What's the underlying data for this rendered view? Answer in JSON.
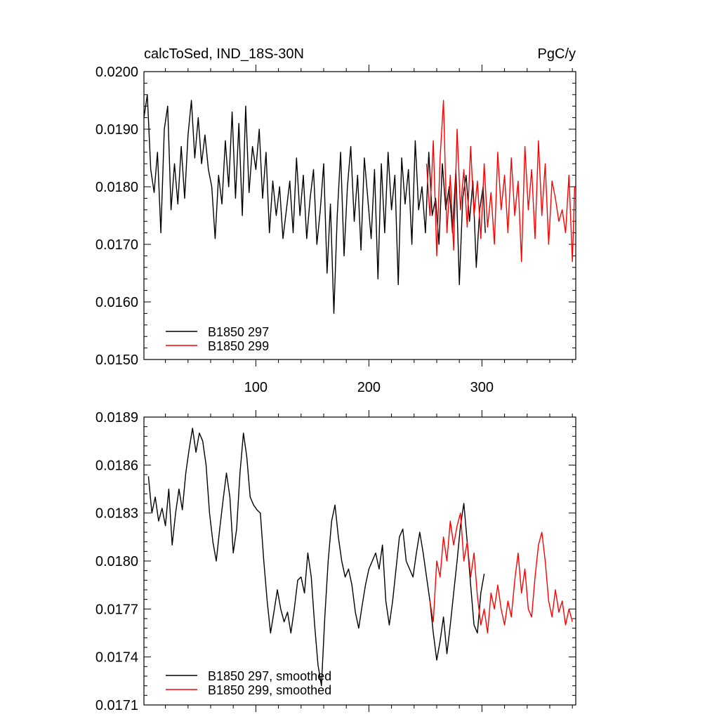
{
  "colors": {
    "black": "#000000",
    "red": "#ff0000"
  },
  "chart_data": [
    {
      "type": "line",
      "title": "calcToSed, IND_18S-30N",
      "units": "PgC/y",
      "xlabel": "",
      "ylabel": "",
      "xlim": [
        1,
        383
      ],
      "ylim": [
        0.015,
        0.02
      ],
      "x_ticks": [
        100,
        200,
        300
      ],
      "x_tick_labels": [
        "100",
        "200",
        "300"
      ],
      "y_ticks": [
        0.015,
        0.016,
        0.017,
        0.018,
        0.019,
        0.02
      ],
      "y_tick_labels": [
        "0.0150",
        "0.0160",
        "0.0170",
        "0.0180",
        "0.0190",
        "0.0200"
      ],
      "grid": false,
      "legend_position": "bottom-left",
      "series": [
        {
          "name": "B1850 297",
          "color": "#000000",
          "x": [
            1,
            4,
            7,
            10,
            13,
            16,
            19,
            22,
            25,
            28,
            31,
            34,
            37,
            40,
            43,
            46,
            49,
            52,
            55,
            58,
            61,
            64,
            67,
            70,
            73,
            76,
            79,
            82,
            85,
            88,
            91,
            94,
            97,
            100,
            103,
            106,
            109,
            112,
            115,
            118,
            121,
            124,
            127,
            130,
            133,
            136,
            139,
            142,
            145,
            148,
            151,
            154,
            157,
            160,
            163,
            166,
            169,
            172,
            175,
            178,
            181,
            184,
            187,
            190,
            193,
            196,
            199,
            202,
            205,
            208,
            211,
            214,
            217,
            220,
            223,
            226,
            229,
            232,
            235,
            238,
            241,
            244,
            247,
            250,
            253,
            256,
            259,
            262,
            265,
            268,
            271,
            274,
            277,
            280,
            283,
            286,
            289,
            292,
            295,
            298,
            301,
            303
          ],
          "values": [
            0.0192,
            0.0196,
            0.0183,
            0.0179,
            0.0186,
            0.0172,
            0.019,
            0.0194,
            0.0176,
            0.0184,
            0.0177,
            0.0187,
            0.0178,
            0.0189,
            0.0195,
            0.0185,
            0.0192,
            0.0184,
            0.0189,
            0.0183,
            0.018,
            0.0171,
            0.0182,
            0.0177,
            0.0188,
            0.018,
            0.0193,
            0.0178,
            0.0191,
            0.0175,
            0.0194,
            0.0179,
            0.0187,
            0.0183,
            0.019,
            0.0178,
            0.0186,
            0.0172,
            0.0181,
            0.0175,
            0.018,
            0.0171,
            0.0176,
            0.0181,
            0.0172,
            0.0185,
            0.0175,
            0.0182,
            0.0171,
            0.0178,
            0.0183,
            0.017,
            0.0176,
            0.0184,
            0.0165,
            0.0177,
            0.0158,
            0.0175,
            0.0186,
            0.0168,
            0.018,
            0.0187,
            0.0174,
            0.0182,
            0.0169,
            0.0185,
            0.0178,
            0.0171,
            0.0183,
            0.0164,
            0.0184,
            0.0172,
            0.0186,
            0.0176,
            0.0182,
            0.0163,
            0.0185,
            0.0177,
            0.0183,
            0.017,
            0.0188,
            0.0176,
            0.018,
            0.0172,
            0.0186,
            0.0175,
            0.0178,
            0.017,
            0.0184,
            0.0176,
            0.018,
            0.0172,
            0.0183,
            0.0163,
            0.0178,
            0.0182,
            0.0174,
            0.0181,
            0.0166,
            0.0176,
            0.018,
            0.0172
          ]
        },
        {
          "name": "B1850 299",
          "color": "#ff0000",
          "x": [
            251,
            254,
            257,
            260,
            263,
            266,
            269,
            272,
            275,
            278,
            281,
            284,
            287,
            290,
            293,
            296,
            299,
            302,
            305,
            308,
            311,
            314,
            317,
            320,
            323,
            326,
            329,
            332,
            335,
            338,
            341,
            344,
            347,
            350,
            353,
            356,
            359,
            362,
            365,
            368,
            371,
            374,
            377,
            380,
            382
          ],
          "values": [
            0.0184,
            0.0175,
            0.0188,
            0.0168,
            0.0185,
            0.0195,
            0.0172,
            0.0182,
            0.0169,
            0.019,
            0.0176,
            0.0183,
            0.0173,
            0.0187,
            0.0175,
            0.0181,
            0.0171,
            0.0184,
            0.0173,
            0.0179,
            0.017,
            0.0186,
            0.0176,
            0.0182,
            0.0172,
            0.0185,
            0.0175,
            0.0181,
            0.0167,
            0.0187,
            0.0176,
            0.0183,
            0.0171,
            0.0188,
            0.0175,
            0.0184,
            0.017,
            0.0181,
            0.0178,
            0.0174,
            0.0176,
            0.0172,
            0.0182,
            0.0167,
            0.018
          ]
        }
      ]
    },
    {
      "type": "line",
      "title": "",
      "xlabel": "",
      "ylabel": "",
      "xlim": [
        1,
        383
      ],
      "ylim": [
        0.0171,
        0.0189
      ],
      "x_ticks": [
        100,
        200,
        300
      ],
      "y_ticks": [
        0.0171,
        0.0174,
        0.0177,
        0.018,
        0.0183,
        0.0186,
        0.0189
      ],
      "y_tick_labels": [
        "0.0171",
        "0.0174",
        "0.0177",
        "0.0180",
        "0.0183",
        "0.0186",
        "0.0189"
      ],
      "grid": false,
      "legend_position": "bottom-left",
      "series": [
        {
          "name": "B1850 297, smoothed",
          "color": "#000000",
          "x": [
            5,
            8,
            11,
            14,
            17,
            20,
            23,
            26,
            29,
            32,
            35,
            38,
            41,
            44,
            47,
            50,
            53,
            56,
            59,
            62,
            65,
            68,
            71,
            74,
            77,
            80,
            83,
            86,
            89,
            92,
            95,
            98,
            101,
            104,
            107,
            110,
            113,
            116,
            119,
            122,
            125,
            128,
            131,
            134,
            137,
            140,
            143,
            146,
            149,
            152,
            155,
            158,
            161,
            164,
            167,
            170,
            173,
            176,
            179,
            182,
            185,
            188,
            191,
            194,
            197,
            200,
            203,
            206,
            209,
            212,
            215,
            218,
            221,
            224,
            227,
            230,
            233,
            236,
            239,
            242,
            245,
            248,
            251,
            254,
            257,
            260,
            263,
            266,
            269,
            272,
            275,
            278,
            281,
            284,
            287,
            290,
            293,
            296,
            299,
            302
          ],
          "values": [
            0.01853,
            0.0183,
            0.0184,
            0.01825,
            0.01833,
            0.01822,
            0.01845,
            0.0181,
            0.0183,
            0.01845,
            0.01832,
            0.01855,
            0.0187,
            0.01883,
            0.01868,
            0.0188,
            0.01875,
            0.0186,
            0.0183,
            0.01812,
            0.018,
            0.0182,
            0.01838,
            0.01855,
            0.0184,
            0.01805,
            0.0182,
            0.01855,
            0.0188,
            0.01865,
            0.0184,
            0.01835,
            0.01832,
            0.0183,
            0.018,
            0.01775,
            0.01755,
            0.01768,
            0.01782,
            0.0177,
            0.01762,
            0.01768,
            0.01755,
            0.0177,
            0.01788,
            0.0179,
            0.0178,
            0.01805,
            0.0179,
            0.0176,
            0.01735,
            0.01722,
            0.01765,
            0.018,
            0.01825,
            0.01835,
            0.01815,
            0.018,
            0.0179,
            0.01795,
            0.01785,
            0.01768,
            0.01758,
            0.01772,
            0.01785,
            0.01795,
            0.018,
            0.01805,
            0.01795,
            0.0181,
            0.01775,
            0.0176,
            0.01775,
            0.01795,
            0.01815,
            0.0182,
            0.018,
            0.01795,
            0.0179,
            0.01805,
            0.01818,
            0.01805,
            0.0179,
            0.01775,
            0.01755,
            0.01738,
            0.0175,
            0.01765,
            0.01742,
            0.0176,
            0.0178,
            0.018,
            0.01822,
            0.01836,
            0.01812,
            0.01785,
            0.0176,
            0.01755,
            0.0178,
            0.01792
          ]
        },
        {
          "name": "B1850 299, smoothed",
          "color": "#ff0000",
          "x": [
            254,
            257,
            260,
            263,
            266,
            269,
            272,
            275,
            278,
            281,
            284,
            287,
            290,
            293,
            296,
            299,
            302,
            305,
            308,
            311,
            314,
            317,
            320,
            323,
            326,
            329,
            332,
            335,
            338,
            341,
            344,
            347,
            350,
            353,
            356,
            359,
            362,
            365,
            368,
            371,
            374,
            377,
            380
          ],
          "values": [
            0.01775,
            0.01762,
            0.018,
            0.0179,
            0.01815,
            0.018,
            0.01825,
            0.0181,
            0.01822,
            0.0183,
            0.018,
            0.01812,
            0.0179,
            0.01805,
            0.01778,
            0.0176,
            0.0177,
            0.01755,
            0.0178,
            0.0177,
            0.01785,
            0.0177,
            0.0176,
            0.01775,
            0.01765,
            0.01788,
            0.01805,
            0.0178,
            0.01795,
            0.0177,
            0.01765,
            0.0179,
            0.0181,
            0.01818,
            0.018,
            0.01775,
            0.01765,
            0.01782,
            0.01768,
            0.01775,
            0.0176,
            0.0177,
            0.01762
          ]
        }
      ]
    }
  ]
}
